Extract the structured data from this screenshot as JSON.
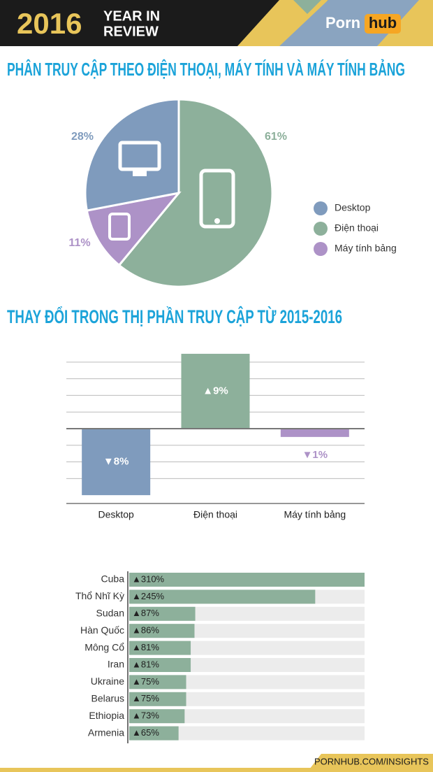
{
  "header": {
    "year": "2016",
    "line1": "YEAR IN",
    "line2": "REVIEW",
    "logo_left": "Porn",
    "logo_right": "hub"
  },
  "footer": {
    "link": "PORNHUB.COM/INSIGHTS"
  },
  "chart_data": [
    {
      "type": "pie",
      "title": "PHÂN TRUY CẬP THEO ĐIỆN THOẠI, MÁY TÍNH VÀ MÁY TÍNH BẢNG",
      "categories": [
        "Desktop",
        "Điện thoại",
        "Máy tính bảng"
      ],
      "values": [
        28,
        61,
        11
      ],
      "value_labels": [
        "28%",
        "61%",
        "11%"
      ],
      "colors": [
        "#7f9bbd",
        "#8db09b",
        "#ad92c7"
      ],
      "legend": "right"
    },
    {
      "type": "bar",
      "title": "THAY ĐỔI TRONG THỊ PHẦN TRUY CẬP TỪ 2015-2016",
      "categories": [
        "Desktop",
        "Điện thoại",
        "Máy tính bảng"
      ],
      "values": [
        -8,
        9,
        -1
      ],
      "value_labels": [
        "▼8%",
        "▲9%",
        "▼1%"
      ],
      "colors": [
        "#7f9bbd",
        "#8db09b",
        "#ad92c7"
      ],
      "ylim": [
        -9,
        9.5
      ],
      "grid_y": [
        -6,
        -4,
        -2,
        2,
        4,
        6,
        8
      ]
    },
    {
      "type": "hbar",
      "categories": [
        "Cuba",
        "Thổ Nhĩ Kỳ",
        "Sudan",
        "Hàn Quốc",
        "Mông Cổ",
        "Iran",
        "Ukraine",
        "Belarus",
        "Ethiopia",
        "Armenia"
      ],
      "values": [
        310,
        245,
        87,
        86,
        81,
        81,
        75,
        75,
        73,
        65
      ],
      "value_labels": [
        "▲310%",
        "▲245%",
        "▲87%",
        "▲86%",
        "▲81%",
        "▲81%",
        "▲75%",
        "▲75%",
        "▲73%",
        "▲65%"
      ],
      "color": "#8db09b",
      "xlim": [
        0,
        310
      ]
    }
  ]
}
